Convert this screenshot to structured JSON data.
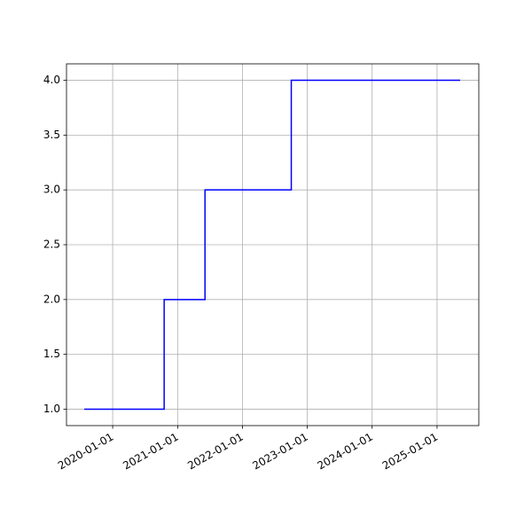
{
  "chart_data": {
    "type": "line",
    "drawstyle": "steps-post",
    "x": [
      "2019-07-25",
      "2020-10-17",
      "2021-06-04",
      "2022-10-03",
      "2025-05-11"
    ],
    "series": [
      {
        "color": "#0000ff",
        "values": [
          1,
          2,
          3,
          4,
          4
        ]
      }
    ],
    "xlim": [
      "2019-04-16",
      "2025-08-24"
    ],
    "xticks": [
      "2020-01-01",
      "2021-01-01",
      "2022-01-01",
      "2023-01-01",
      "2024-01-01",
      "2025-01-01"
    ],
    "ylim": [
      0.85,
      4.15
    ],
    "yticks": [
      {
        "value": 1,
        "label": "1.0"
      },
      1.5,
      {
        "value": 2,
        "label": "2.0"
      },
      2.5,
      {
        "value": 3,
        "label": "3.0"
      },
      3.5,
      {
        "value": 4,
        "label": "4.0"
      }
    ],
    "grid": true
  }
}
